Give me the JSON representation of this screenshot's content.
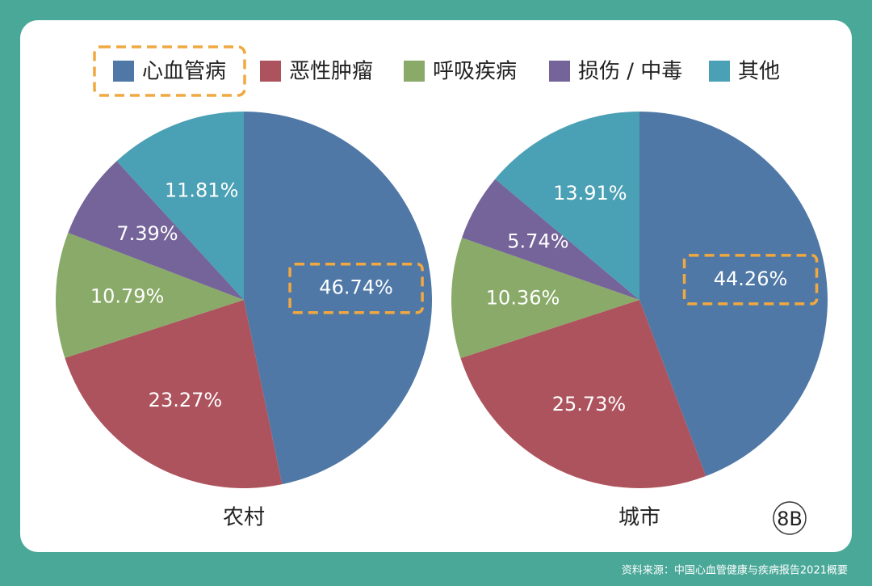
{
  "chart_data": [
    {
      "type": "pie",
      "title": "农村",
      "categories": [
        "心血管病",
        "恶性肿瘤",
        "呼吸疾病",
        "损伤 / 中毒",
        "其他"
      ],
      "values": [
        46.74,
        23.27,
        10.79,
        7.39,
        11.81
      ],
      "value_labels": [
        "46.74%",
        "23.27%",
        "10.79%",
        "7.39%",
        "11.81%"
      ],
      "colors": [
        "#4f78a6",
        "#ad535d",
        "#8aaa69",
        "#75649a",
        "#4aa0b4"
      ]
    },
    {
      "type": "pie",
      "title": "城市",
      "categories": [
        "心血管病",
        "恶性肿瘤",
        "呼吸疾病",
        "损伤 / 中毒",
        "其他"
      ],
      "values": [
        44.26,
        25.73,
        10.36,
        5.74,
        13.91
      ],
      "value_labels": [
        "44.26%",
        "25.73%",
        "10.36%",
        "5.74%",
        "13.91%"
      ],
      "colors": [
        "#4f78a6",
        "#ad535d",
        "#8aaa69",
        "#75649a",
        "#4aa0b4"
      ]
    }
  ],
  "footer": {
    "source": "资料来源：中国心血管健康与疾病报告2021概要",
    "logo": "8B"
  }
}
